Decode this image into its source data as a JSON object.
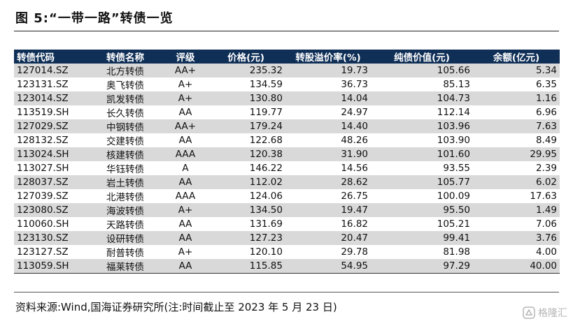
{
  "figure": {
    "title": "图 5:“一带一路”转债一览"
  },
  "table": {
    "headers": [
      "转债代码",
      "转债名称",
      "评级",
      "价格(元)",
      "转股溢价率(%)",
      "纯债价值(元)",
      "余额(亿元)"
    ],
    "rows": [
      [
        "127014.SZ",
        "北方转债",
        "AA+",
        "235.32",
        "19.73",
        "105.66",
        "5.34"
      ],
      [
        "123131.SZ",
        "奥飞转债",
        "A+",
        "134.59",
        "36.73",
        "85.13",
        "6.35"
      ],
      [
        "123014.SZ",
        "凯发转债",
        "A+",
        "130.80",
        "14.04",
        "104.73",
        "1.16"
      ],
      [
        "113519.SH",
        "长久转债",
        "AA",
        "119.77",
        "24.97",
        "112.14",
        "6.96"
      ],
      [
        "127029.SZ",
        "中钢转债",
        "AA+",
        "179.24",
        "14.40",
        "103.96",
        "7.63"
      ],
      [
        "128132.SZ",
        "交建转债",
        "AA",
        "122.68",
        "48.26",
        "103.90",
        "8.49"
      ],
      [
        "113024.SH",
        "核建转债",
        "AAA",
        "120.38",
        "31.90",
        "101.60",
        "29.95"
      ],
      [
        "113027.SH",
        "华钰转债",
        "A",
        "146.22",
        "14.56",
        "93.55",
        "2.39"
      ],
      [
        "128037.SZ",
        "岩土转债",
        "AA",
        "112.02",
        "28.62",
        "105.77",
        "6.02"
      ],
      [
        "127039.SZ",
        "北港转债",
        "AAA",
        "124.06",
        "26.75",
        "100.09",
        "17.63"
      ],
      [
        "123080.SZ",
        "海波转债",
        "A+",
        "134.50",
        "19.47",
        "95.50",
        "1.49"
      ],
      [
        "110060.SH",
        "天路转债",
        "AA",
        "131.69",
        "16.82",
        "105.21",
        "7.06"
      ],
      [
        "123130.SZ",
        "设研转债",
        "AA",
        "127.23",
        "20.47",
        "99.41",
        "3.76"
      ],
      [
        "123127.SZ",
        "耐普转债",
        "A+",
        "120.10",
        "29.78",
        "81.98",
        "4.00"
      ],
      [
        "113059.SH",
        "福莱转债",
        "AA",
        "115.85",
        "54.95",
        "97.29",
        "40.00"
      ]
    ]
  },
  "source_note": "资料来源:Wind,国海证券研究所(注:时间截止至 2023 年 5 月 23 日)",
  "watermark": {
    "text": "格隆汇",
    "icon": "brand-logo-icon"
  },
  "colors": {
    "header_bg": "#0f2f57",
    "header_text": "#ffffff",
    "row_shade": "#d9d9d9"
  }
}
